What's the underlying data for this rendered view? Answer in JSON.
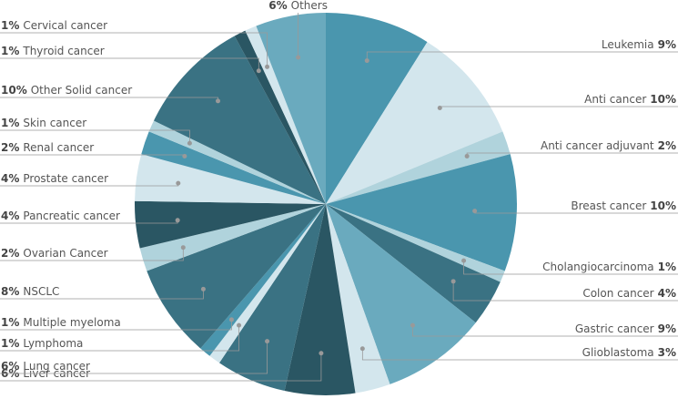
{
  "chart_data": {
    "type": "pie",
    "categories": [
      "Leukemia",
      "Anti cancer",
      "Anti cancer adjuvant",
      "Breast cancer",
      "Cholangiocarcinoma",
      "Colon cancer",
      "Gastric cancer",
      "Glioblastoma",
      "Liver cancer",
      "Lung cancer",
      "Lymphoma",
      "Multiple myeloma",
      "NSCLC",
      "Ovarian Cancer",
      "Pancreatic cancer",
      "Prostate cancer",
      "Renal cancer",
      "Skin cancer",
      "Other Solid cancer",
      "Thyroid cancer",
      "Cervical cancer",
      "Others"
    ],
    "values": [
      9,
      10,
      2,
      10,
      1,
      4,
      9,
      3,
      6,
      6,
      1,
      1,
      8,
      2,
      4,
      4,
      2,
      1,
      10,
      1,
      1,
      6
    ],
    "value_labels": [
      "9%",
      "10%",
      "2%",
      "10%",
      "1%",
      "4%",
      "9%",
      "3%",
      "6%",
      "6%",
      "1%",
      "1%",
      "8%",
      "2%",
      "4%",
      "4%",
      "2%",
      "1%",
      "10%",
      "1%",
      "1%",
      "6%"
    ],
    "colors": [
      "#4a96ae",
      "#d3e6ed",
      "#b0d3dc",
      "#4a96ae",
      "#b0d3dc",
      "#3a7283",
      "#6aaabe",
      "#d3e6ed",
      "#2a5663",
      "#3a7283",
      "#d3e6ed",
      "#4a96ae",
      "#3a7283",
      "#b0d3dc",
      "#2a5663",
      "#d3e6ed",
      "#4a96ae",
      "#b0d3dc",
      "#3a7283",
      "#2a5663",
      "#d3e6ed",
      "#6aaabe"
    ]
  }
}
